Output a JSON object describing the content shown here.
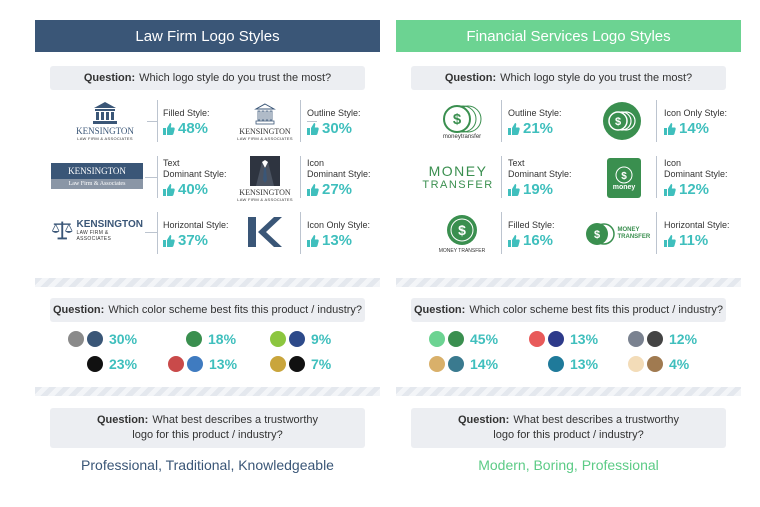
{
  "left": {
    "title": "Law Firm Logo Styles",
    "q1_prefix": "Question:",
    "q1_text": "Which logo style do you trust the most?",
    "styles": [
      {
        "label": "Filled Style:",
        "value": "48%"
      },
      {
        "label": "Outline Style:",
        "value": "30%"
      },
      {
        "label": "Text Dominant Style:",
        "label_lines": [
          "Text",
          "Dominant Style:"
        ],
        "value": "40%"
      },
      {
        "label": "Icon Dominant Style:",
        "label_lines": [
          "Icon",
          "Dominant Style:"
        ],
        "value": "27%"
      },
      {
        "label": "Horizontal Style:",
        "value": "37%"
      },
      {
        "label": "Icon Only Style:",
        "value": "13%"
      }
    ],
    "logo_texts": {
      "kensington": "KENSINGTON",
      "law_firm": "LAW FIRM & ASSOCIATES",
      "law_firm_cap": "Law Firm & Associates"
    },
    "q2_prefix": "Question:",
    "q2_text": "Which color scheme best fits this product / industry?",
    "schemes": [
      {
        "colors": [
          "#8a8a8a",
          "#3a5677"
        ],
        "value": "30%"
      },
      {
        "colors": [
          "#3a8f4f"
        ],
        "value": "18%"
      },
      {
        "colors": [
          "#8cc63f",
          "#2d4a8a"
        ],
        "value": "9%"
      },
      {
        "colors": [
          "#111111"
        ],
        "value": "23%"
      },
      {
        "colors": [
          "#c94a4a",
          "#3f7bc0"
        ],
        "value": "13%"
      },
      {
        "colors": [
          "#c9a53c",
          "#111111"
        ],
        "value": "7%"
      }
    ],
    "q3_prefix": "Question:",
    "q3_text_line1": "What best describes a trustworthy",
    "q3_text_line2": "logo for this product / industry?",
    "answer": "Professional, Traditional, Knowledgeable"
  },
  "right": {
    "title": "Financial Services Logo Styles",
    "q1_prefix": "Question:",
    "q1_text": "Which logo style do you trust the most?",
    "styles": [
      {
        "label": "Outline Style:",
        "value": "21%"
      },
      {
        "label": "Icon Only Style:",
        "value": "14%"
      },
      {
        "label": "Text Dominant Style:",
        "label_lines": [
          "Text",
          "Dominant Style:"
        ],
        "value": "19%"
      },
      {
        "label": "Icon Dominant Style:",
        "label_lines": [
          "Icon",
          "Dominant Style:"
        ],
        "value": "12%"
      },
      {
        "label": "Filled Style:",
        "value": "16%"
      },
      {
        "label": "Horizontal Style:",
        "value": "11%"
      }
    ],
    "logo_texts": {
      "moneytransfer": "moneytransfer",
      "money": "MONEY",
      "transfer": "TRANSFER",
      "money_lower": "money",
      "money_transfer": "MONEY TRANSFER"
    },
    "q2_prefix": "Question:",
    "q2_text": "Which color scheme best fits this product / industry?",
    "schemes": [
      {
        "colors": [
          "#6cd392",
          "#3a8f4f"
        ],
        "value": "45%"
      },
      {
        "colors": [
          "#e85a5a",
          "#2d3a8a"
        ],
        "value": "13%"
      },
      {
        "colors": [
          "#7a8290",
          "#444444"
        ],
        "value": "12%"
      },
      {
        "colors": [
          "#d9b06a",
          "#3a7a8f"
        ],
        "value": "14%"
      },
      {
        "colors": [
          "#1f7a9a"
        ],
        "value": "13%"
      },
      {
        "colors": [
          "#f3dcb8",
          "#a07a50"
        ],
        "value": "4%"
      }
    ],
    "q3_prefix": "Question:",
    "q3_text_line1": "What best describes a trustworthy",
    "q3_text_line2": "logo for this product / industry?",
    "answer": "Modern, Boring, Professional"
  },
  "colors": {
    "navy": "#3a5677",
    "green": "#6cd392",
    "teal": "#3fbfbd"
  },
  "icons": {
    "thumb": "thumbs-up-icon",
    "building": "courthouse-icon",
    "scales": "scales-of-justice-icon",
    "suit": "suit-icon",
    "dollar": "dollar-coin-icon"
  }
}
